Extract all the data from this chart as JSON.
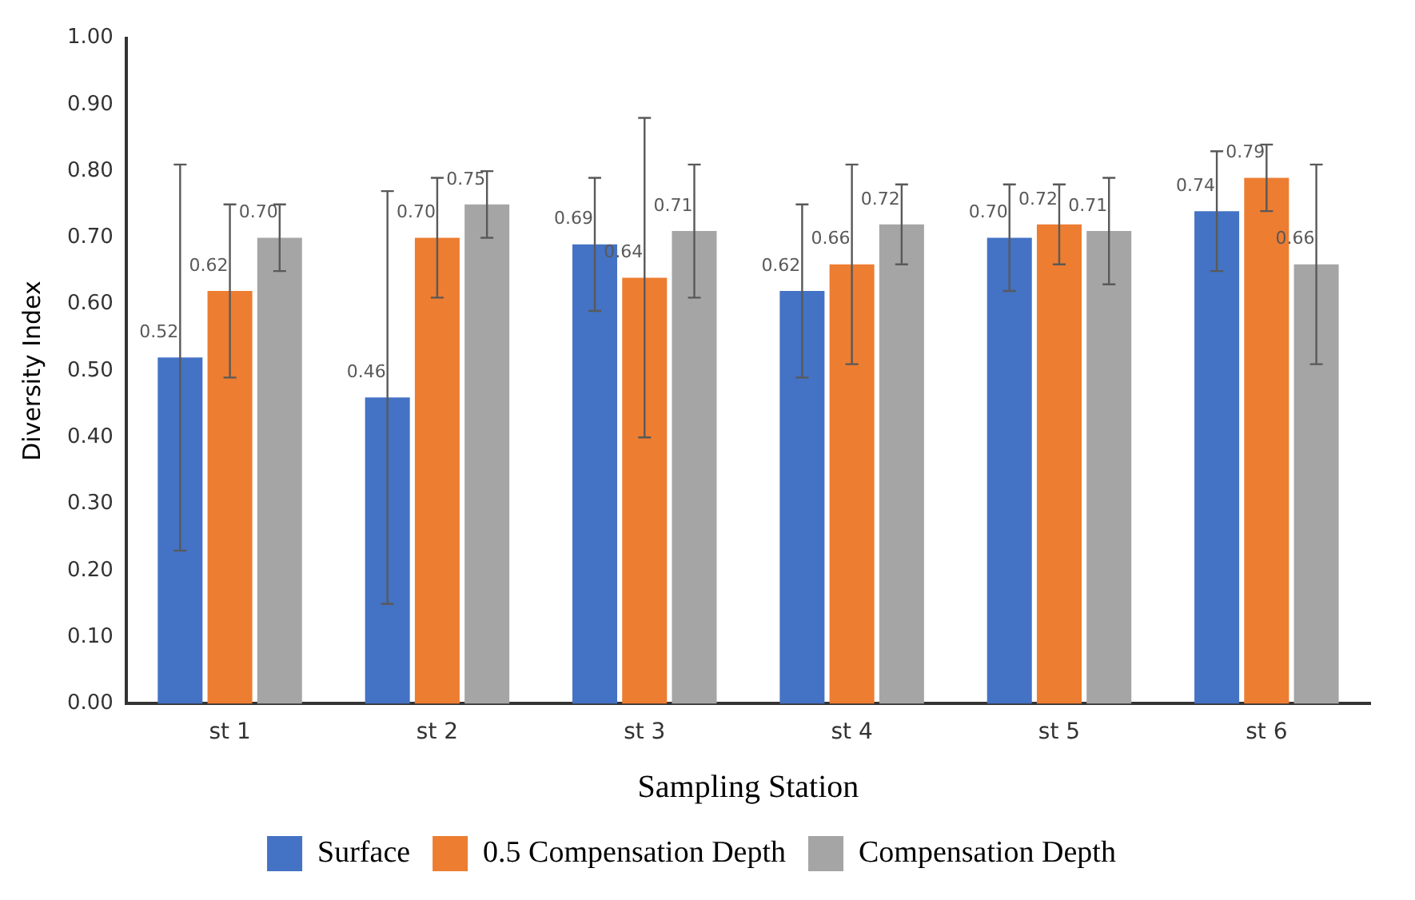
{
  "chart_data": {
    "type": "bar",
    "xlabel": "Sampling Station",
    "ylabel": "Diversity Index",
    "categories": [
      "st 1",
      "st 2",
      "st 3",
      "st 4",
      "st 5",
      "st 6"
    ],
    "series": [
      {
        "name": "Surface",
        "color": "#4472c4",
        "values": [
          0.52,
          0.46,
          0.69,
          0.62,
          0.7,
          0.74
        ],
        "errors": [
          0.29,
          0.31,
          0.1,
          0.13,
          0.08,
          0.09
        ],
        "value_labels": [
          "0.52",
          "0.46",
          "0.69",
          "0.62",
          "0.70",
          "0.74"
        ]
      },
      {
        "name": "0.5 Compensation Depth",
        "color": "#ed7d31",
        "values": [
          0.62,
          0.7,
          0.64,
          0.66,
          0.72,
          0.79
        ],
        "errors": [
          0.13,
          0.09,
          0.24,
          0.15,
          0.06,
          0.05
        ],
        "value_labels": [
          "0.62",
          "0.70",
          "0.64",
          "0.66",
          "0.72",
          "0.79"
        ]
      },
      {
        "name": "Compensation Depth",
        "color": "#a5a5a5",
        "values": [
          0.7,
          0.75,
          0.71,
          0.72,
          0.71,
          0.66
        ],
        "errors": [
          0.05,
          0.05,
          0.1,
          0.06,
          0.08,
          0.15
        ],
        "value_labels": [
          "0.70",
          "0.75",
          "0.71",
          "0.72",
          "0.71",
          "0.66"
        ]
      }
    ],
    "ylim": [
      0,
      1
    ],
    "yticks": [
      {
        "value": 0,
        "label": "0.00"
      },
      {
        "value": 0.1,
        "label": "0.10"
      },
      {
        "value": 0.2,
        "label": "0.20"
      },
      {
        "value": 0.3,
        "label": "0.30"
      },
      {
        "value": 0.4,
        "label": "0.40"
      },
      {
        "value": 0.5,
        "label": "0.50"
      },
      {
        "value": 0.6,
        "label": "0.60"
      },
      {
        "value": 0.7,
        "label": "0.70"
      },
      {
        "value": 0.8,
        "label": "0.80"
      },
      {
        "value": 0.9,
        "label": "0.90"
      },
      {
        "value": 1,
        "label": "1.00"
      }
    ],
    "grid": false,
    "legend": "bottom"
  }
}
